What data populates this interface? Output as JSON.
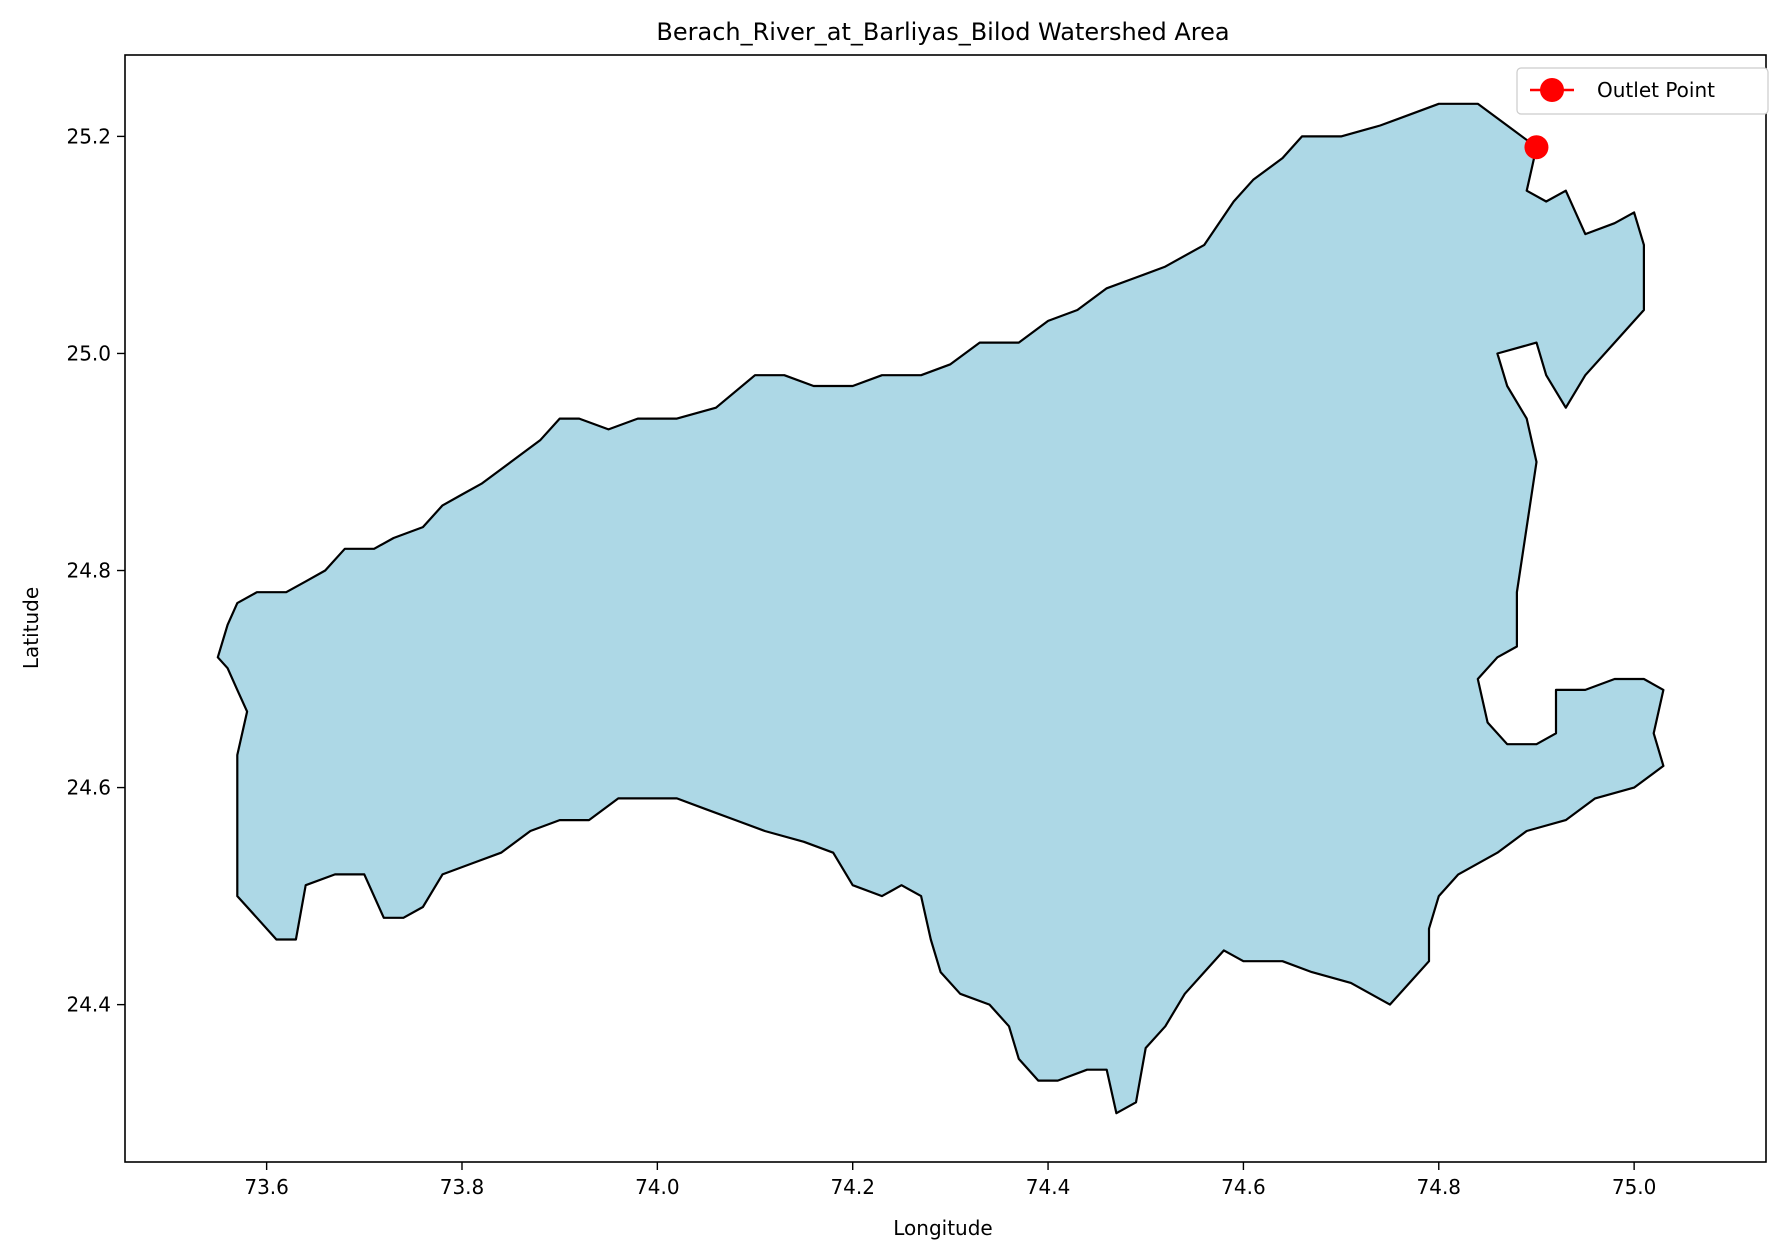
{
  "figure": {
    "title": "Berach_River_at_Barliyas_Bilod Watershed Area",
    "xlabel": "Longitude",
    "ylabel": "Latitude"
  },
  "chart_data": {
    "type": "map",
    "xlim": [
      73.455,
      75.135
    ],
    "ylim": [
      24.255,
      25.275
    ],
    "xticks": [
      73.6,
      73.8,
      74.0,
      74.2,
      74.4,
      74.6,
      74.8,
      75.0
    ],
    "yticks": [
      24.4,
      24.6,
      24.8,
      25.0,
      25.2
    ],
    "tick_labels_x": [
      "73.6",
      "73.8",
      "74.0",
      "74.2",
      "74.4",
      "74.6",
      "74.8",
      "75.0"
    ],
    "tick_labels_y": [
      "24.4",
      "24.6",
      "24.8",
      "25.0",
      "25.2"
    ],
    "grid": false,
    "legend_position": "top-right",
    "watershed": {
      "fill_color": "#add8e6",
      "edge_color": "#000000",
      "boundary": [
        [
          73.56,
          24.71
        ],
        [
          73.55,
          24.72
        ],
        [
          73.56,
          24.75
        ],
        [
          73.57,
          24.77
        ],
        [
          73.59,
          24.78
        ],
        [
          73.62,
          24.78
        ],
        [
          73.64,
          24.79
        ],
        [
          73.66,
          24.8
        ],
        [
          73.68,
          24.82
        ],
        [
          73.71,
          24.82
        ],
        [
          73.73,
          24.83
        ],
        [
          73.76,
          24.84
        ],
        [
          73.78,
          24.86
        ],
        [
          73.8,
          24.87
        ],
        [
          73.82,
          24.88
        ],
        [
          73.85,
          24.9
        ],
        [
          73.88,
          24.92
        ],
        [
          73.9,
          24.94
        ],
        [
          73.92,
          24.94
        ],
        [
          73.95,
          24.93
        ],
        [
          73.98,
          24.94
        ],
        [
          74.02,
          24.94
        ],
        [
          74.06,
          24.95
        ],
        [
          74.1,
          24.98
        ],
        [
          74.13,
          24.98
        ],
        [
          74.16,
          24.97
        ],
        [
          74.2,
          24.97
        ],
        [
          74.23,
          24.98
        ],
        [
          74.27,
          24.98
        ],
        [
          74.3,
          24.99
        ],
        [
          74.33,
          25.01
        ],
        [
          74.37,
          25.01
        ],
        [
          74.4,
          25.03
        ],
        [
          74.43,
          25.04
        ],
        [
          74.46,
          25.06
        ],
        [
          74.49,
          25.07
        ],
        [
          74.52,
          25.08
        ],
        [
          74.56,
          25.1
        ],
        [
          74.59,
          25.14
        ],
        [
          74.61,
          25.16
        ],
        [
          74.64,
          25.18
        ],
        [
          74.66,
          25.2
        ],
        [
          74.7,
          25.2
        ],
        [
          74.74,
          25.21
        ],
        [
          74.77,
          25.22
        ],
        [
          74.8,
          25.23
        ],
        [
          74.84,
          25.23
        ],
        [
          74.87,
          25.21
        ],
        [
          74.9,
          25.19
        ],
        [
          74.89,
          25.15
        ],
        [
          74.91,
          25.14
        ],
        [
          74.93,
          25.15
        ],
        [
          74.95,
          25.11
        ],
        [
          74.98,
          25.12
        ],
        [
          75.0,
          25.13
        ],
        [
          75.01,
          25.1
        ],
        [
          75.01,
          25.04
        ],
        [
          74.98,
          25.01
        ],
        [
          74.95,
          24.98
        ],
        [
          74.93,
          24.95
        ],
        [
          74.91,
          24.98
        ],
        [
          74.9,
          25.01
        ],
        [
          74.86,
          25.0
        ],
        [
          74.87,
          24.97
        ],
        [
          74.89,
          24.94
        ],
        [
          74.9,
          24.9
        ],
        [
          74.89,
          24.84
        ],
        [
          74.88,
          24.78
        ],
        [
          74.88,
          24.73
        ],
        [
          74.86,
          24.72
        ],
        [
          74.84,
          24.7
        ],
        [
          74.85,
          24.66
        ],
        [
          74.87,
          24.64
        ],
        [
          74.9,
          24.64
        ],
        [
          74.92,
          24.65
        ],
        [
          74.92,
          24.69
        ],
        [
          74.95,
          24.69
        ],
        [
          74.98,
          24.7
        ],
        [
          75.01,
          24.7
        ],
        [
          75.03,
          24.69
        ],
        [
          75.02,
          24.65
        ],
        [
          75.03,
          24.62
        ],
        [
          75.0,
          24.6
        ],
        [
          74.96,
          24.59
        ],
        [
          74.93,
          24.57
        ],
        [
          74.89,
          24.56
        ],
        [
          74.86,
          24.54
        ],
        [
          74.82,
          24.52
        ],
        [
          74.8,
          24.5
        ],
        [
          74.79,
          24.47
        ],
        [
          74.79,
          24.44
        ],
        [
          74.77,
          24.42
        ],
        [
          74.75,
          24.4
        ],
        [
          74.71,
          24.42
        ],
        [
          74.67,
          24.43
        ],
        [
          74.64,
          24.44
        ],
        [
          74.6,
          24.44
        ],
        [
          74.58,
          24.45
        ],
        [
          74.56,
          24.43
        ],
        [
          74.54,
          24.41
        ],
        [
          74.52,
          24.38
        ],
        [
          74.5,
          24.36
        ],
        [
          74.49,
          24.31
        ],
        [
          74.47,
          24.3
        ],
        [
          74.46,
          24.34
        ],
        [
          74.44,
          24.34
        ],
        [
          74.41,
          24.33
        ],
        [
          74.39,
          24.33
        ],
        [
          74.37,
          24.35
        ],
        [
          74.36,
          24.38
        ],
        [
          74.34,
          24.4
        ],
        [
          74.31,
          24.41
        ],
        [
          74.29,
          24.43
        ],
        [
          74.28,
          24.46
        ],
        [
          74.27,
          24.5
        ],
        [
          74.25,
          24.51
        ],
        [
          74.23,
          24.5
        ],
        [
          74.2,
          24.51
        ],
        [
          74.18,
          24.54
        ],
        [
          74.15,
          24.55
        ],
        [
          74.11,
          24.56
        ],
        [
          74.08,
          24.57
        ],
        [
          74.05,
          24.58
        ],
        [
          74.02,
          24.59
        ],
        [
          73.99,
          24.59
        ],
        [
          73.96,
          24.59
        ],
        [
          73.93,
          24.57
        ],
        [
          73.9,
          24.57
        ],
        [
          73.87,
          24.56
        ],
        [
          73.84,
          24.54
        ],
        [
          73.81,
          24.53
        ],
        [
          73.78,
          24.52
        ],
        [
          73.76,
          24.49
        ],
        [
          73.74,
          24.48
        ],
        [
          73.72,
          24.48
        ],
        [
          73.7,
          24.52
        ],
        [
          73.67,
          24.52
        ],
        [
          73.64,
          24.51
        ],
        [
          73.63,
          24.46
        ],
        [
          73.61,
          24.46
        ],
        [
          73.59,
          24.48
        ],
        [
          73.57,
          24.5
        ],
        [
          73.57,
          24.58
        ],
        [
          73.57,
          24.63
        ],
        [
          73.58,
          24.67
        ],
        [
          73.57,
          24.69
        ]
      ]
    },
    "series": [
      {
        "name": "Outlet Point",
        "color": "#ff0000",
        "x": [
          74.9
        ],
        "y": [
          25.19
        ]
      }
    ]
  }
}
